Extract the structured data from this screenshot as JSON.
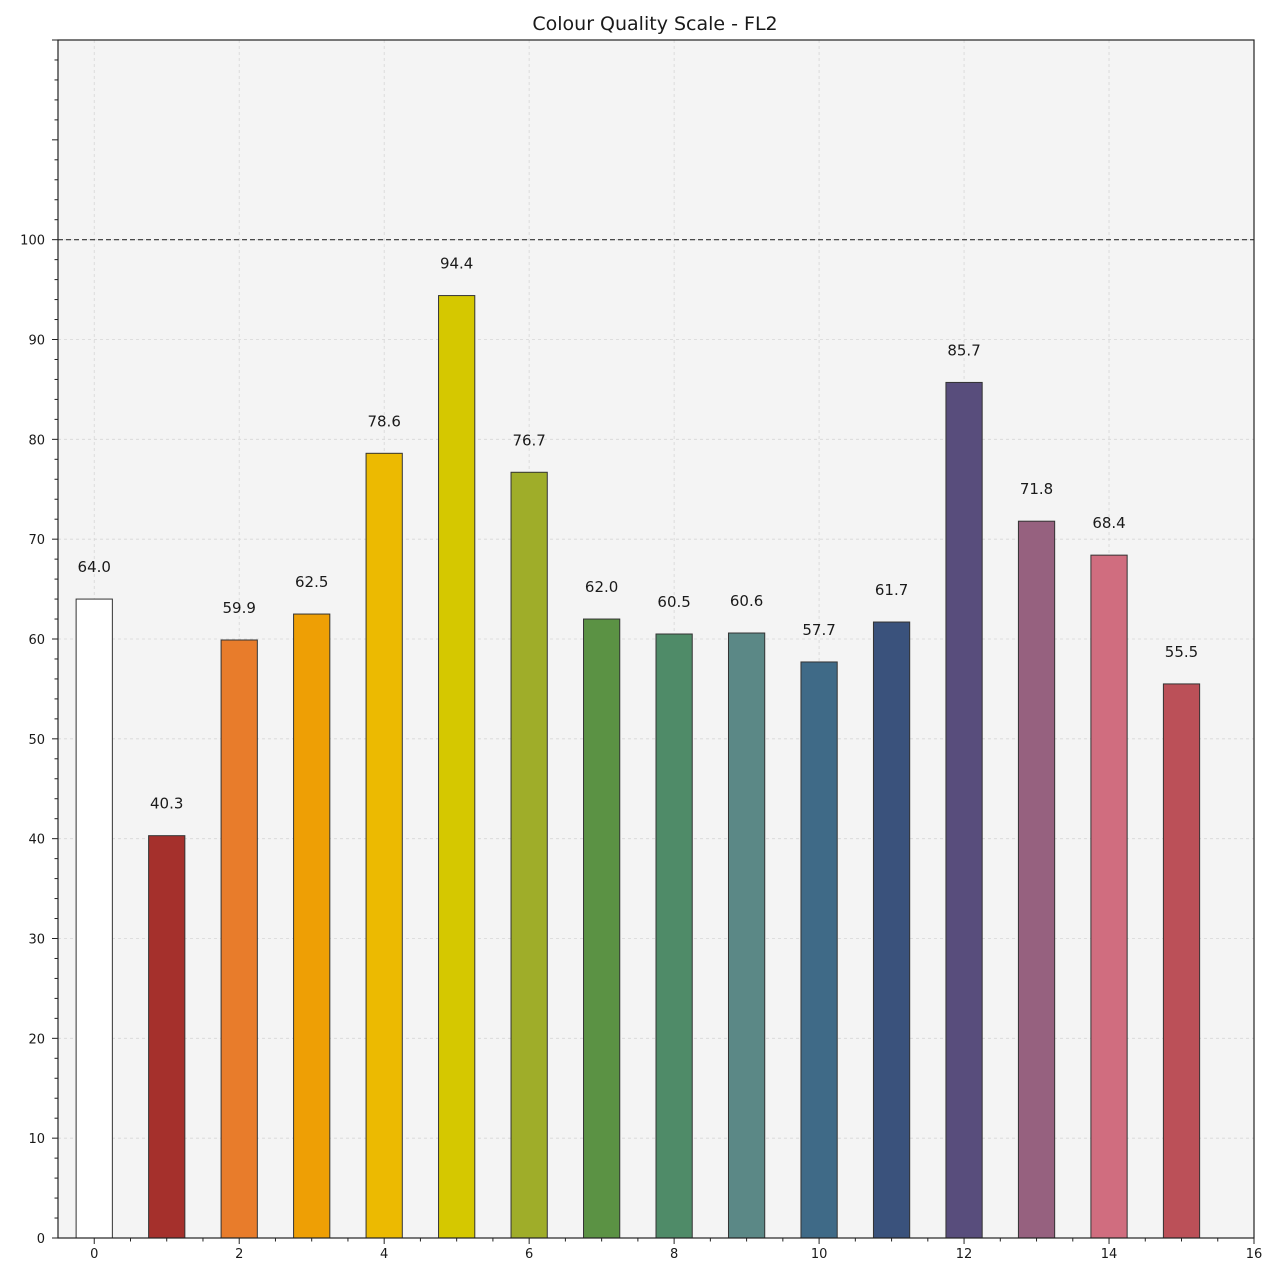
{
  "chart_data": {
    "type": "bar",
    "title": "Colour Quality Scale - FL2",
    "xlabel": "",
    "ylabel": "",
    "x": [
      0,
      1,
      2,
      3,
      4,
      5,
      6,
      7,
      8,
      9,
      10,
      11,
      12,
      13,
      14,
      15
    ],
    "values": [
      64.0,
      40.3,
      59.9,
      62.5,
      78.6,
      94.4,
      76.7,
      62.0,
      60.5,
      60.6,
      57.7,
      61.7,
      85.7,
      71.8,
      68.4,
      55.5
    ],
    "value_labels": [
      "64.0",
      "40.3",
      "59.9",
      "62.5",
      "78.6",
      "94.4",
      "76.7",
      "62.0",
      "60.5",
      "60.6",
      "57.7",
      "61.7",
      "85.7",
      "71.8",
      "68.4",
      "55.5"
    ],
    "bar_colors": [
      "#ffffff",
      "#a5302c",
      "#e87c2b",
      "#ee9f05",
      "#ecba01",
      "#d5c800",
      "#9fad29",
      "#5b9244",
      "#4f8b68",
      "#5b8886",
      "#3f6a87",
      "#3a527c",
      "#584d7c",
      "#96617f",
      "#d06d7f",
      "#bb5058"
    ],
    "xlim": [
      -0.5,
      16
    ],
    "ylim": [
      0,
      120
    ],
    "x_ticks": [
      0,
      2,
      4,
      6,
      8,
      10,
      12,
      14,
      16
    ],
    "x_tick_labels": [
      "0",
      "2",
      "4",
      "6",
      "8",
      "10",
      "12",
      "14",
      "16"
    ],
    "y_ticks": [
      0,
      10,
      20,
      30,
      40,
      50,
      60,
      70,
      80,
      90,
      100
    ],
    "y_tick_labels": [
      "0",
      "10",
      "20",
      "30",
      "40",
      "50",
      "60",
      "70",
      "80",
      "90",
      "100"
    ],
    "reference_line": 100,
    "grid": true,
    "background_color": "#f4f4f4",
    "legend": "none"
  }
}
